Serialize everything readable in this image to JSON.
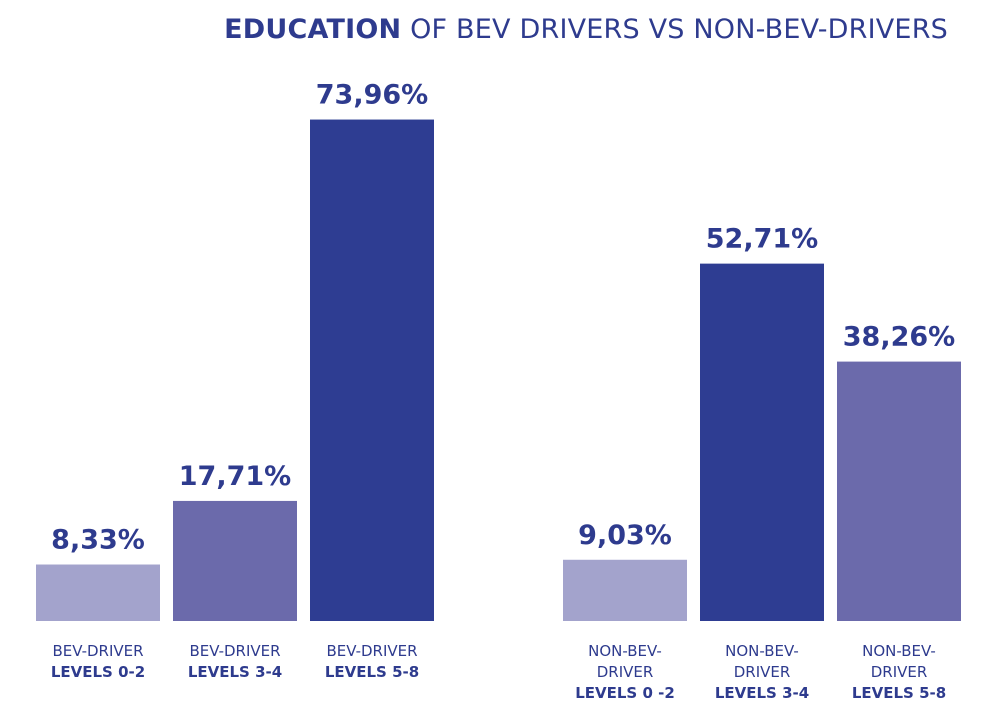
{
  "chart_data": {
    "type": "bar",
    "title_strong": "EDUCATION",
    "title_rest": " OF BEV DRIVERS VS NON-BEV-DRIVERS",
    "value_suffix": "%",
    "decimal_separator": ",",
    "ylim": [
      0,
      80
    ],
    "grid": false,
    "legend": "none",
    "groups": [
      {
        "name": "BEV drivers",
        "bars": [
          {
            "value": 8.33,
            "label_lines": [
              "BEV-DRIVER"
            ],
            "label_bold": "LEVELS 0-2",
            "color": "#a3a3cc"
          },
          {
            "value": 17.71,
            "label_lines": [
              "BEV-DRIVER"
            ],
            "label_bold": "LEVELS 3-4",
            "color": "#6b6aab"
          },
          {
            "value": 73.96,
            "label_lines": [
              "BEV-DRIVER"
            ],
            "label_bold": "LEVELS 5-8",
            "color": "#2e3d92"
          }
        ]
      },
      {
        "name": "Non-BEV drivers",
        "bars": [
          {
            "value": 9.03,
            "label_lines": [
              "NON-BEV-",
              "DRIVER"
            ],
            "label_bold": "LEVELS 0 -2",
            "color": "#a3a3cc"
          },
          {
            "value": 52.71,
            "label_lines": [
              "NON-BEV-",
              "DRIVER"
            ],
            "label_bold": "LEVELS 3-4",
            "color": "#2e3d92"
          },
          {
            "value": 38.26,
            "label_lines": [
              "NON-BEV-",
              "DRIVER"
            ],
            "label_bold": "LEVELS 5-8",
            "color": "#6b6aab"
          }
        ]
      }
    ],
    "value_label_color": "#2e3b8e"
  }
}
